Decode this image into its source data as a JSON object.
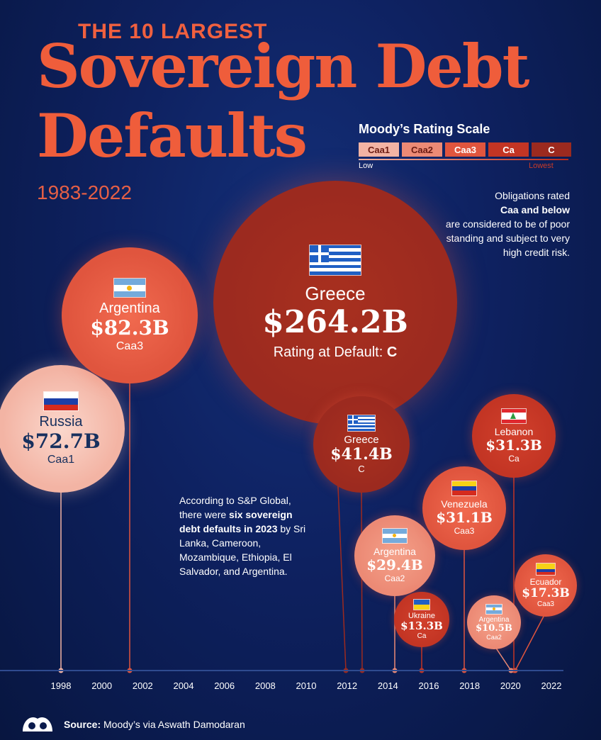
{
  "header": {
    "kicker": "THE 10 LARGEST",
    "title_line1": "Sovereign Debt",
    "title_line2": "Defaults",
    "period": "1983-2022"
  },
  "rating_scale": {
    "title": "Moody’s Rating Scale",
    "grades": [
      "Caa1",
      "Caa2",
      "Caa3",
      "Ca",
      "C"
    ],
    "grade_colors": [
      "#f3b4a4",
      "#ec8a75",
      "#e0553e",
      "#c33524",
      "#9c2a1f"
    ],
    "low_label": "Low",
    "lowest_label": "Lowest"
  },
  "note": {
    "line_pre": "Obligations rated",
    "line_bold": "Caa and below",
    "line_post": "are considered to be of poor standing and subject to very high credit risk."
  },
  "callout": {
    "text_pre": "According to S&P Global, there were",
    "text_bold": "six sovereign debt defaults in 2023",
    "text_post": "by Sri Lanka, Cameroon, Mozambique, Ethiopia, El Salvador, and Argentina."
  },
  "chart_data": {
    "type": "scatter",
    "x_ticks": [
      1998,
      2000,
      2002,
      2004,
      2006,
      2008,
      2010,
      2012,
      2014,
      2016,
      2018,
      2020,
      2022
    ],
    "xlim": [
      1997,
      2023
    ],
    "size_encoding": "bubble area proportional to default amount ($B)",
    "rating_at_default_label": "Rating at Default:",
    "points": [
      {
        "country": "Russia",
        "year": 1998,
        "amount": "$72.7B",
        "value": 72.7,
        "rating": "Caa1",
        "flag": "russia"
      },
      {
        "country": "Argentina",
        "year": 2001,
        "amount": "$82.3B",
        "value": 82.3,
        "rating": "Caa3",
        "flag": "argentina"
      },
      {
        "country": "Greece",
        "year": 2012,
        "amount": "$264.2B",
        "value": 264.2,
        "rating": "C",
        "flag": "greece"
      },
      {
        "country": "Greece",
        "year": 2012,
        "amount": "$41.4B",
        "value": 41.4,
        "rating": "C",
        "flag": "greece"
      },
      {
        "country": "Argentina",
        "year": 2014,
        "amount": "$29.4B",
        "value": 29.4,
        "rating": "Caa2",
        "flag": "argentina"
      },
      {
        "country": "Ukraine",
        "year": 2015,
        "amount": "$13.3B",
        "value": 13.3,
        "rating": "Ca",
        "flag": "ukraine"
      },
      {
        "country": "Venezuela",
        "year": 2017,
        "amount": "$31.1B",
        "value": 31.1,
        "rating": "Caa3",
        "flag": "venezuela"
      },
      {
        "country": "Lebanon",
        "year": 2020,
        "amount": "$31.3B",
        "value": 31.3,
        "rating": "Ca",
        "flag": "lebanon"
      },
      {
        "country": "Argentina",
        "year": 2020,
        "amount": "$10.5B",
        "value": 10.5,
        "rating": "Caa2",
        "flag": "argentina"
      },
      {
        "country": "Ecuador",
        "year": 2020,
        "amount": "$17.3B",
        "value": 17.3,
        "rating": "Caa3",
        "flag": "ecuador"
      }
    ]
  },
  "footer": {
    "source_label": "Source:",
    "source_text": "Moody’s via Aswath Damodaran",
    "logo_icon": "visual-capitalist-logo-icon"
  }
}
